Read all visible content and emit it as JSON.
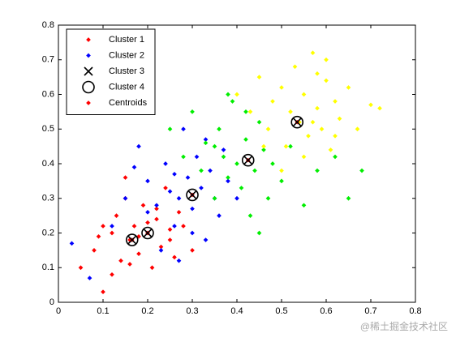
{
  "chart_data": {
    "type": "scatter",
    "xlim": [
      0,
      0.8
    ],
    "ylim": [
      0,
      0.8
    ],
    "xticks": [
      0,
      0.1,
      0.2,
      0.3,
      0.4,
      0.5,
      0.6,
      0.7,
      0.8
    ],
    "yticks": [
      0,
      0.1,
      0.2,
      0.3,
      0.4,
      0.5,
      0.6,
      0.7,
      0.8
    ],
    "legend": "upper left",
    "watermark": "@稀土掘金技术社区",
    "series": [
      {
        "name": "Cluster 1",
        "color": "#ff0000",
        "marker": "dot",
        "x": [
          0.05,
          0.08,
          0.1,
          0.12,
          0.13,
          0.14,
          0.15,
          0.16,
          0.17,
          0.18,
          0.19,
          0.2,
          0.21,
          0.22,
          0.23,
          0.24,
          0.25,
          0.26,
          0.27,
          0.12,
          0.15,
          0.18,
          0.2,
          0.22,
          0.25,
          0.28,
          0.1,
          0.3,
          0.16,
          0.09
        ],
        "values": [
          0.1,
          0.15,
          0.03,
          0.2,
          0.25,
          0.12,
          0.3,
          0.18,
          0.22,
          0.14,
          0.28,
          0.2,
          0.1,
          0.24,
          0.16,
          0.33,
          0.21,
          0.13,
          0.26,
          0.08,
          0.36,
          0.19,
          0.23,
          0.27,
          0.18,
          0.22,
          0.22,
          0.15,
          0.11,
          0.19
        ]
      },
      {
        "name": "Cluster 2",
        "color": "#0000ff",
        "marker": "dot",
        "x": [
          0.03,
          0.07,
          0.12,
          0.15,
          0.18,
          0.2,
          0.22,
          0.24,
          0.25,
          0.26,
          0.27,
          0.28,
          0.29,
          0.3,
          0.31,
          0.32,
          0.33,
          0.34,
          0.35,
          0.36,
          0.37,
          0.38,
          0.2,
          0.23,
          0.26,
          0.3,
          0.17,
          0.33,
          0.4,
          0.27
        ],
        "values": [
          0.17,
          0.07,
          0.22,
          0.3,
          0.45,
          0.35,
          0.28,
          0.4,
          0.32,
          0.22,
          0.3,
          0.5,
          0.36,
          0.27,
          0.42,
          0.33,
          0.18,
          0.38,
          0.3,
          0.25,
          0.44,
          0.35,
          0.26,
          0.15,
          0.37,
          0.2,
          0.39,
          0.47,
          0.3,
          0.12
        ]
      },
      {
        "color": "#00ee00",
        "marker": "dot",
        "x": [
          0.25,
          0.28,
          0.3,
          0.32,
          0.33,
          0.35,
          0.36,
          0.37,
          0.38,
          0.39,
          0.4,
          0.41,
          0.42,
          0.43,
          0.44,
          0.45,
          0.46,
          0.47,
          0.48,
          0.5,
          0.52,
          0.55,
          0.58,
          0.62,
          0.65,
          0.68,
          0.35,
          0.42,
          0.45,
          0.38
        ],
        "values": [
          0.5,
          0.42,
          0.55,
          0.38,
          0.46,
          0.3,
          0.5,
          0.42,
          0.36,
          0.58,
          0.4,
          0.33,
          0.47,
          0.25,
          0.38,
          0.52,
          0.44,
          0.3,
          0.4,
          0.35,
          0.45,
          0.28,
          0.38,
          0.42,
          0.3,
          0.38,
          0.45,
          0.55,
          0.2,
          0.6
        ]
      },
      {
        "color": "#ffff00",
        "marker": "dot",
        "x": [
          0.4,
          0.43,
          0.45,
          0.47,
          0.48,
          0.5,
          0.51,
          0.52,
          0.53,
          0.54,
          0.55,
          0.56,
          0.57,
          0.58,
          0.59,
          0.6,
          0.61,
          0.62,
          0.63,
          0.65,
          0.67,
          0.7,
          0.72,
          0.5,
          0.55,
          0.58,
          0.62,
          0.46,
          0.6,
          0.57
        ],
        "values": [
          0.6,
          0.55,
          0.65,
          0.5,
          0.58,
          0.62,
          0.45,
          0.55,
          0.68,
          0.52,
          0.6,
          0.48,
          0.72,
          0.56,
          0.5,
          0.64,
          0.44,
          0.58,
          0.53,
          0.62,
          0.5,
          0.57,
          0.56,
          0.38,
          0.42,
          0.66,
          0.48,
          0.45,
          0.7,
          0.52
        ]
      },
      {
        "name": "Centroids",
        "color": "#ff0000",
        "marker": "dot",
        "x": [
          0.165,
          0.2,
          0.3,
          0.425,
          0.535
        ],
        "values": [
          0.18,
          0.2,
          0.31,
          0.41,
          0.52
        ]
      },
      {
        "name": "Cluster 3",
        "color": "#000000",
        "marker": "x",
        "x": [
          0.165,
          0.2,
          0.3,
          0.425,
          0.535
        ],
        "values": [
          0.18,
          0.2,
          0.31,
          0.41,
          0.52
        ]
      },
      {
        "name": "Cluster 4",
        "color": "#000000",
        "marker": "o",
        "x": [
          0.165,
          0.2,
          0.3,
          0.425,
          0.535
        ],
        "values": [
          0.18,
          0.2,
          0.31,
          0.41,
          0.52
        ]
      }
    ]
  }
}
